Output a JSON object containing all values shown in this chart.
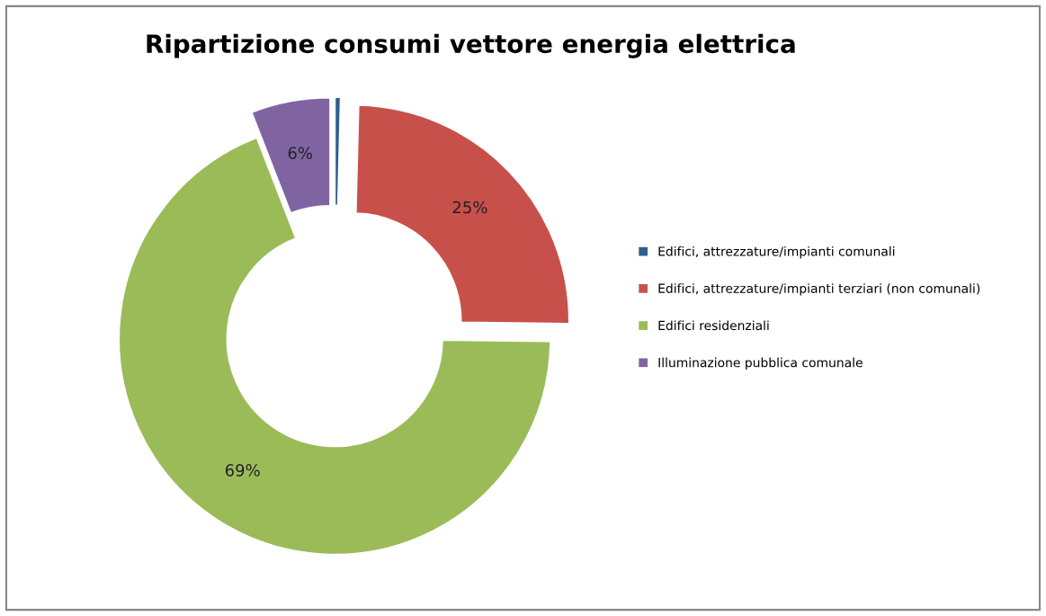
{
  "chart_data": {
    "type": "donut",
    "title": "Ripartizione consumi vettore energia elettrica",
    "categories": [
      "Edifici, attrezzature/impianti comunali",
      "Edifici, attrezzature/impianti terziari (non comunali)",
      "Edifici residenziali",
      "Illuminazione pubblica comunale"
    ],
    "values": [
      0.4,
      24.8,
      68.9,
      5.9
    ],
    "colors": [
      "#2f5f8f",
      "#c8504b",
      "#9bbb59",
      "#8064a2"
    ],
    "value_labels": [
      null,
      "25%",
      "69%",
      "6%"
    ],
    "legend": "right"
  }
}
